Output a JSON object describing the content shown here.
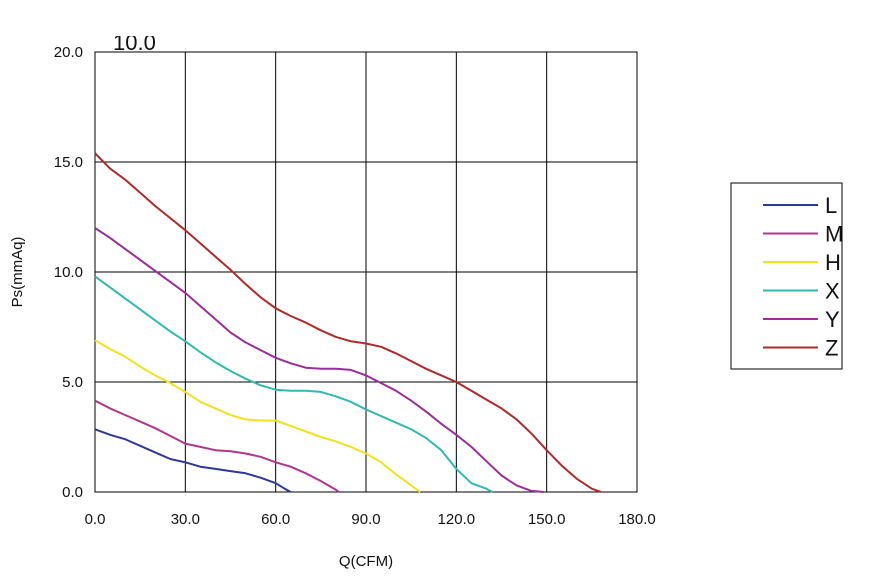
{
  "chart_data": {
    "type": "line",
    "title": "",
    "title_fragment": "10.0",
    "xlabel": "Q(CFM)",
    "ylabel": "Ps(mmAq)",
    "xlim": [
      0,
      180
    ],
    "ylim": [
      0,
      20
    ],
    "xticks": [
      "0.0",
      "30.0",
      "60.0",
      "90.0",
      "120.0",
      "150.0",
      "180.0"
    ],
    "yticks": [
      "0.0",
      "5.0",
      "10.0",
      "15.0",
      "20.0"
    ],
    "grid": true,
    "legend_position": "right",
    "series": [
      {
        "name": "L",
        "color": "#2b3a98",
        "points": [
          [
            0,
            2.85
          ],
          [
            5,
            2.6
          ],
          [
            10,
            2.4
          ],
          [
            15,
            2.1
          ],
          [
            20,
            1.8
          ],
          [
            25,
            1.5
          ],
          [
            30,
            1.35
          ],
          [
            35,
            1.15
          ],
          [
            40,
            1.05
          ],
          [
            45,
            0.95
          ],
          [
            50,
            0.85
          ],
          [
            55,
            0.65
          ],
          [
            60,
            0.4
          ],
          [
            63,
            0.15
          ],
          [
            65,
            0
          ]
        ]
      },
      {
        "name": "M",
        "color": "#b0368e",
        "points": [
          [
            0,
            4.15
          ],
          [
            5,
            3.8
          ],
          [
            10,
            3.5
          ],
          [
            15,
            3.2
          ],
          [
            20,
            2.9
          ],
          [
            25,
            2.55
          ],
          [
            30,
            2.2
          ],
          [
            35,
            2.05
          ],
          [
            40,
            1.9
          ],
          [
            45,
            1.85
          ],
          [
            50,
            1.75
          ],
          [
            55,
            1.6
          ],
          [
            60,
            1.35
          ],
          [
            65,
            1.15
          ],
          [
            70,
            0.85
          ],
          [
            75,
            0.5
          ],
          [
            80,
            0.1
          ],
          [
            81,
            0
          ]
        ]
      },
      {
        "name": "H",
        "color": "#f2e21e",
        "points": [
          [
            0,
            6.9
          ],
          [
            5,
            6.5
          ],
          [
            10,
            6.15
          ],
          [
            15,
            5.7
          ],
          [
            20,
            5.3
          ],
          [
            25,
            4.95
          ],
          [
            30,
            4.55
          ],
          [
            35,
            4.1
          ],
          [
            40,
            3.8
          ],
          [
            45,
            3.5
          ],
          [
            50,
            3.3
          ],
          [
            55,
            3.25
          ],
          [
            60,
            3.25
          ],
          [
            65,
            3.0
          ],
          [
            70,
            2.75
          ],
          [
            75,
            2.5
          ],
          [
            80,
            2.3
          ],
          [
            85,
            2.05
          ],
          [
            90,
            1.75
          ],
          [
            95,
            1.35
          ],
          [
            100,
            0.8
          ],
          [
            105,
            0.3
          ],
          [
            108,
            0
          ]
        ]
      },
      {
        "name": "X",
        "color": "#2fbab0",
        "points": [
          [
            0,
            9.8
          ],
          [
            5,
            9.3
          ],
          [
            10,
            8.8
          ],
          [
            15,
            8.3
          ],
          [
            20,
            7.8
          ],
          [
            25,
            7.3
          ],
          [
            30,
            6.85
          ],
          [
            35,
            6.35
          ],
          [
            40,
            5.9
          ],
          [
            45,
            5.5
          ],
          [
            50,
            5.15
          ],
          [
            55,
            4.85
          ],
          [
            60,
            4.65
          ],
          [
            65,
            4.6
          ],
          [
            70,
            4.6
          ],
          [
            75,
            4.55
          ],
          [
            80,
            4.35
          ],
          [
            85,
            4.1
          ],
          [
            90,
            3.75
          ],
          [
            95,
            3.45
          ],
          [
            100,
            3.15
          ],
          [
            105,
            2.85
          ],
          [
            110,
            2.45
          ],
          [
            115,
            1.9
          ],
          [
            120,
            1.05
          ],
          [
            125,
            0.4
          ],
          [
            130,
            0.15
          ],
          [
            132,
            0
          ]
        ]
      },
      {
        "name": "Y",
        "color": "#9a2e9a",
        "points": [
          [
            0,
            12.0
          ],
          [
            5,
            11.55
          ],
          [
            10,
            11.05
          ],
          [
            15,
            10.55
          ],
          [
            20,
            10.05
          ],
          [
            25,
            9.55
          ],
          [
            30,
            9.05
          ],
          [
            35,
            8.45
          ],
          [
            40,
            7.85
          ],
          [
            45,
            7.25
          ],
          [
            50,
            6.8
          ],
          [
            55,
            6.45
          ],
          [
            60,
            6.1
          ],
          [
            65,
            5.85
          ],
          [
            70,
            5.65
          ],
          [
            75,
            5.6
          ],
          [
            80,
            5.6
          ],
          [
            85,
            5.55
          ],
          [
            90,
            5.3
          ],
          [
            95,
            4.95
          ],
          [
            100,
            4.6
          ],
          [
            105,
            4.15
          ],
          [
            110,
            3.65
          ],
          [
            115,
            3.1
          ],
          [
            120,
            2.6
          ],
          [
            125,
            2.05
          ],
          [
            130,
            1.4
          ],
          [
            135,
            0.75
          ],
          [
            140,
            0.3
          ],
          [
            145,
            0.05
          ],
          [
            149,
            0
          ]
        ]
      },
      {
        "name": "Z",
        "color": "#b02a2a",
        "points": [
          [
            0,
            15.4
          ],
          [
            5,
            14.7
          ],
          [
            10,
            14.2
          ],
          [
            15,
            13.6
          ],
          [
            20,
            13.0
          ],
          [
            25,
            12.45
          ],
          [
            30,
            11.9
          ],
          [
            35,
            11.3
          ],
          [
            40,
            10.7
          ],
          [
            45,
            10.1
          ],
          [
            50,
            9.45
          ],
          [
            55,
            8.85
          ],
          [
            60,
            8.35
          ],
          [
            65,
            8.0
          ],
          [
            70,
            7.7
          ],
          [
            75,
            7.35
          ],
          [
            80,
            7.05
          ],
          [
            85,
            6.85
          ],
          [
            90,
            6.75
          ],
          [
            95,
            6.6
          ],
          [
            100,
            6.3
          ],
          [
            105,
            5.95
          ],
          [
            110,
            5.6
          ],
          [
            115,
            5.3
          ],
          [
            120,
            5.0
          ],
          [
            125,
            4.6
          ],
          [
            130,
            4.2
          ],
          [
            135,
            3.8
          ],
          [
            140,
            3.3
          ],
          [
            145,
            2.65
          ],
          [
            150,
            1.9
          ],
          [
            155,
            1.2
          ],
          [
            160,
            0.6
          ],
          [
            165,
            0.15
          ],
          [
            168,
            0
          ]
        ]
      }
    ]
  }
}
